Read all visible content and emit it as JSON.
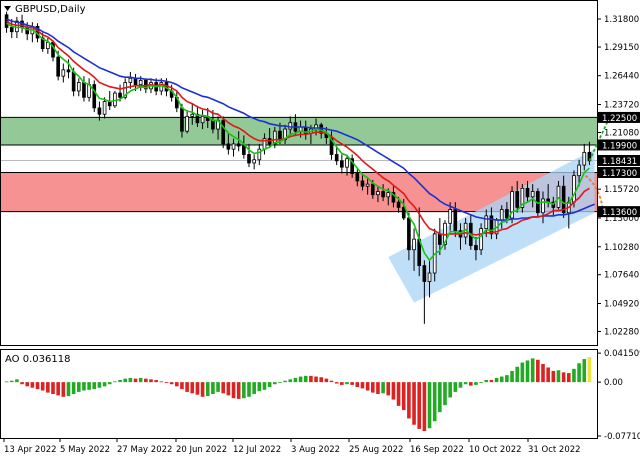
{
  "symbol_label": "GBPUSD,Daily",
  "ao_label": "AO 0.036118",
  "colors": {
    "background": "#ffffff",
    "bull_candle": "#ffffff",
    "bear_candle": "#000000",
    "ma_blue": "#1f2fd6",
    "ma_red": "#e01818",
    "ma_green": "#14c414",
    "channel_fill": "#a9d4f5",
    "resistance_zone": "#7fbf85",
    "support_zone": "#f47f7f",
    "ao_up": "#22aa22",
    "ao_down": "#dd2222",
    "ao_last": "#f2e33a",
    "price_tag": "#000000",
    "arrow_up": "#22aa22",
    "arrow_down": "#f07a22"
  },
  "chart_data": {
    "type": "candlestick",
    "price_axis": {
      "min": 1.01,
      "max": 1.335,
      "ticks": [
        "1.31800",
        "1.29150",
        "1.26440",
        "1.23720",
        "1.21080",
        "1.15720",
        "1.13000",
        "1.10280",
        "1.07640",
        "1.04920",
        "1.02280"
      ]
    },
    "highlighted_levels": [
      {
        "label": "1.22500",
        "value": 1.225
      },
      {
        "label": "1.19900",
        "value": 1.199
      },
      {
        "label": "1.18431",
        "value": 1.18431,
        "current_price": true
      },
      {
        "label": "1.17300",
        "value": 1.173
      },
      {
        "label": "1.13600",
        "value": 1.136
      }
    ],
    "zones": [
      {
        "name": "resistance",
        "from": 1.199,
        "to": 1.225
      },
      {
        "name": "support",
        "from": 1.136,
        "to": 1.173
      }
    ],
    "x_axis_labels": [
      "13 Apr 2022",
      "5 May 2022",
      "27 May 2022",
      "20 Jun 2022",
      "12 Jul 2022",
      "3 Aug 2022",
      "25 Aug 2022",
      "16 Sep 2022",
      "10 Oct 2022",
      "31 Oct 2022"
    ],
    "candles": [
      [
        1.322,
        1.325,
        1.305,
        1.31
      ],
      [
        1.31,
        1.318,
        1.3,
        1.306
      ],
      [
        1.306,
        1.32,
        1.3,
        1.316
      ],
      [
        1.316,
        1.322,
        1.305,
        1.31
      ],
      [
        1.31,
        1.315,
        1.298,
        1.304
      ],
      [
        1.304,
        1.315,
        1.296,
        1.311
      ],
      [
        1.311,
        1.314,
        1.296,
        1.3
      ],
      [
        1.3,
        1.305,
        1.287,
        1.29
      ],
      [
        1.29,
        1.3,
        1.285,
        1.296
      ],
      [
        1.296,
        1.298,
        1.278,
        1.282
      ],
      [
        1.282,
        1.288,
        1.26,
        1.264
      ],
      [
        1.264,
        1.276,
        1.258,
        1.27
      ],
      [
        1.27,
        1.28,
        1.262,
        1.268
      ],
      [
        1.268,
        1.272,
        1.245,
        1.25
      ],
      [
        1.25,
        1.262,
        1.245,
        1.258
      ],
      [
        1.258,
        1.264,
        1.24,
        1.244
      ],
      [
        1.244,
        1.262,
        1.24,
        1.256
      ],
      [
        1.256,
        1.26,
        1.23,
        1.234
      ],
      [
        1.234,
        1.24,
        1.222,
        1.228
      ],
      [
        1.228,
        1.244,
        1.224,
        1.24
      ],
      [
        1.24,
        1.25,
        1.232,
        1.236
      ],
      [
        1.236,
        1.25,
        1.234,
        1.248
      ],
      [
        1.248,
        1.256,
        1.24,
        1.244
      ],
      [
        1.244,
        1.262,
        1.242,
        1.258
      ],
      [
        1.258,
        1.268,
        1.252,
        1.262
      ],
      [
        1.262,
        1.266,
        1.25,
        1.256
      ],
      [
        1.256,
        1.264,
        1.25,
        1.26
      ],
      [
        1.26,
        1.262,
        1.248,
        1.252
      ],
      [
        1.252,
        1.262,
        1.248,
        1.258
      ],
      [
        1.258,
        1.262,
        1.246,
        1.25
      ],
      [
        1.25,
        1.262,
        1.246,
        1.258
      ],
      [
        1.258,
        1.262,
        1.245,
        1.25
      ],
      [
        1.25,
        1.256,
        1.24,
        1.244
      ],
      [
        1.244,
        1.25,
        1.23,
        1.234
      ],
      [
        1.234,
        1.238,
        1.206,
        1.212
      ],
      [
        1.212,
        1.232,
        1.21,
        1.226
      ],
      [
        1.226,
        1.238,
        1.218,
        1.228
      ],
      [
        1.228,
        1.236,
        1.216,
        1.22
      ],
      [
        1.22,
        1.232,
        1.214,
        1.226
      ],
      [
        1.226,
        1.234,
        1.215,
        1.222
      ],
      [
        1.222,
        1.232,
        1.21,
        1.214
      ],
      [
        1.214,
        1.226,
        1.204,
        1.222
      ],
      [
        1.222,
        1.226,
        1.196,
        1.2
      ],
      [
        1.2,
        1.21,
        1.19,
        1.195
      ],
      [
        1.195,
        1.205,
        1.188,
        1.2
      ],
      [
        1.2,
        1.212,
        1.193,
        1.198
      ],
      [
        1.198,
        1.208,
        1.186,
        1.19
      ],
      [
        1.19,
        1.2,
        1.178,
        1.182
      ],
      [
        1.182,
        1.19,
        1.176,
        1.185
      ],
      [
        1.185,
        1.2,
        1.18,
        1.195
      ],
      [
        1.195,
        1.21,
        1.19,
        1.205
      ],
      [
        1.205,
        1.215,
        1.196,
        1.2
      ],
      [
        1.2,
        1.216,
        1.196,
        1.212
      ],
      [
        1.212,
        1.22,
        1.2,
        1.204
      ],
      [
        1.204,
        1.218,
        1.2,
        1.214
      ],
      [
        1.214,
        1.226,
        1.208,
        1.22
      ],
      [
        1.22,
        1.228,
        1.208,
        1.212
      ],
      [
        1.212,
        1.222,
        1.206,
        1.216
      ],
      [
        1.216,
        1.222,
        1.204,
        1.21
      ],
      [
        1.21,
        1.218,
        1.2,
        1.214
      ],
      [
        1.214,
        1.224,
        1.208,
        1.218
      ],
      [
        1.218,
        1.22,
        1.205,
        1.21
      ],
      [
        1.21,
        1.216,
        1.2,
        1.206
      ],
      [
        1.206,
        1.212,
        1.185,
        1.19
      ],
      [
        1.19,
        1.198,
        1.18,
        1.184
      ],
      [
        1.184,
        1.19,
        1.172,
        1.178
      ],
      [
        1.178,
        1.19,
        1.17,
        1.186
      ],
      [
        1.186,
        1.19,
        1.168,
        1.172
      ],
      [
        1.172,
        1.176,
        1.16,
        1.165
      ],
      [
        1.165,
        1.172,
        1.156,
        1.16
      ],
      [
        1.16,
        1.168,
        1.152,
        1.162
      ],
      [
        1.162,
        1.166,
        1.148,
        1.152
      ],
      [
        1.152,
        1.16,
        1.145,
        1.155
      ],
      [
        1.155,
        1.162,
        1.146,
        1.15
      ],
      [
        1.15,
        1.158,
        1.142,
        1.154
      ],
      [
        1.154,
        1.16,
        1.14,
        1.145
      ],
      [
        1.145,
        1.15,
        1.135,
        1.14
      ],
      [
        1.14,
        1.148,
        1.128,
        1.13
      ],
      [
        1.13,
        1.135,
        1.09,
        1.1
      ],
      [
        1.1,
        1.12,
        1.08,
        1.11
      ],
      [
        1.11,
        1.14,
        1.075,
        1.085
      ],
      [
        1.085,
        1.09,
        1.03,
        1.07
      ],
      [
        1.07,
        1.09,
        1.055,
        1.078
      ],
      [
        1.078,
        1.12,
        1.07,
        1.115
      ],
      [
        1.115,
        1.13,
        1.095,
        1.105
      ],
      [
        1.105,
        1.128,
        1.1,
        1.125
      ],
      [
        1.125,
        1.145,
        1.118,
        1.138
      ],
      [
        1.138,
        1.145,
        1.112,
        1.118
      ],
      [
        1.118,
        1.125,
        1.1,
        1.112
      ],
      [
        1.112,
        1.13,
        1.105,
        1.125
      ],
      [
        1.125,
        1.133,
        1.1,
        1.104
      ],
      [
        1.104,
        1.112,
        1.09,
        1.1
      ],
      [
        1.1,
        1.125,
        1.095,
        1.12
      ],
      [
        1.12,
        1.138,
        1.112,
        1.132
      ],
      [
        1.132,
        1.14,
        1.11,
        1.115
      ],
      [
        1.115,
        1.13,
        1.11,
        1.128
      ],
      [
        1.128,
        1.142,
        1.12,
        1.138
      ],
      [
        1.138,
        1.145,
        1.125,
        1.13
      ],
      [
        1.13,
        1.16,
        1.125,
        1.155
      ],
      [
        1.155,
        1.165,
        1.135,
        1.14
      ],
      [
        1.14,
        1.162,
        1.135,
        1.158
      ],
      [
        1.158,
        1.165,
        1.145,
        1.15
      ],
      [
        1.15,
        1.162,
        1.14,
        1.155
      ],
      [
        1.155,
        1.158,
        1.13,
        1.135
      ],
      [
        1.135,
        1.155,
        1.125,
        1.148
      ],
      [
        1.148,
        1.162,
        1.14,
        1.145
      ],
      [
        1.145,
        1.15,
        1.132,
        1.14
      ],
      [
        1.14,
        1.165,
        1.138,
        1.16
      ],
      [
        1.16,
        1.17,
        1.13,
        1.135
      ],
      [
        1.135,
        1.15,
        1.12,
        1.145
      ],
      [
        1.145,
        1.175,
        1.14,
        1.17
      ],
      [
        1.17,
        1.185,
        1.16,
        1.18
      ],
      [
        1.18,
        1.2,
        1.175,
        1.192
      ],
      [
        1.192,
        1.202,
        1.18,
        1.184
      ]
    ],
    "moving_averages": [
      {
        "color_key": "ma_blue",
        "values": [
          1.318,
          1.316,
          1.315,
          1.314,
          1.312,
          1.311,
          1.309,
          1.306,
          1.304,
          1.301,
          1.297,
          1.294,
          1.291,
          1.287,
          1.284,
          1.281,
          1.278,
          1.275,
          1.272,
          1.27,
          1.268,
          1.266,
          1.264,
          1.263,
          1.263,
          1.262,
          1.262,
          1.261,
          1.261,
          1.26,
          1.26,
          1.259,
          1.258,
          1.256,
          1.253,
          1.251,
          1.249,
          1.247,
          1.245,
          1.244,
          1.242,
          1.24,
          1.238,
          1.235,
          1.233,
          1.231,
          1.229,
          1.226,
          1.224,
          1.222,
          1.221,
          1.219,
          1.218,
          1.217,
          1.217,
          1.216,
          1.216,
          1.216,
          1.216,
          1.215,
          1.215,
          1.215,
          1.214,
          1.213,
          1.212,
          1.21,
          1.208,
          1.206,
          1.204,
          1.201,
          1.198,
          1.195,
          1.192,
          1.189,
          1.186,
          1.183,
          1.18,
          1.177,
          1.172,
          1.168,
          1.163,
          1.158,
          1.153,
          1.15,
          1.146,
          1.143,
          1.141,
          1.139,
          1.137,
          1.135,
          1.133,
          1.131,
          1.13,
          1.129,
          1.129,
          1.128,
          1.128,
          1.128,
          1.129,
          1.129,
          1.13,
          1.13,
          1.131,
          1.131,
          1.132,
          1.132,
          1.132,
          1.133,
          1.133,
          1.134,
          1.135,
          1.137,
          1.139,
          1.141,
          1.143
        ]
      },
      {
        "color_key": "ma_red",
        "values": [
          1.316,
          1.313,
          1.312,
          1.312,
          1.31,
          1.31,
          1.307,
          1.303,
          1.301,
          1.297,
          1.291,
          1.287,
          1.283,
          1.278,
          1.274,
          1.27,
          1.267,
          1.263,
          1.258,
          1.256,
          1.254,
          1.253,
          1.252,
          1.253,
          1.254,
          1.255,
          1.255,
          1.255,
          1.256,
          1.255,
          1.256,
          1.255,
          1.253,
          1.25,
          1.244,
          1.24,
          1.238,
          1.235,
          1.233,
          1.232,
          1.229,
          1.228,
          1.224,
          1.22,
          1.217,
          1.215,
          1.212,
          1.208,
          1.205,
          1.203,
          1.203,
          1.203,
          1.204,
          1.204,
          1.205,
          1.207,
          1.208,
          1.209,
          1.209,
          1.21,
          1.211,
          1.211,
          1.21,
          1.207,
          1.203,
          1.2,
          1.197,
          1.193,
          1.189,
          1.184,
          1.18,
          1.176,
          1.172,
          1.168,
          1.165,
          1.161,
          1.157,
          1.153,
          1.146,
          1.141,
          1.134,
          1.126,
          1.12,
          1.118,
          1.115,
          1.114,
          1.115,
          1.115,
          1.115,
          1.116,
          1.115,
          1.114,
          1.115,
          1.116,
          1.116,
          1.117,
          1.119,
          1.12,
          1.123,
          1.125,
          1.128,
          1.129,
          1.131,
          1.131,
          1.132,
          1.134,
          1.137,
          1.137,
          1.138,
          1.14,
          1.145,
          1.149,
          1.155,
          1.158
        ]
      },
      {
        "color_key": "ma_green",
        "values": [
          1.314,
          1.311,
          1.31,
          1.31,
          1.308,
          1.308,
          1.304,
          1.299,
          1.297,
          1.292,
          1.284,
          1.28,
          1.276,
          1.268,
          1.264,
          1.258,
          1.256,
          1.25,
          1.243,
          1.242,
          1.24,
          1.241,
          1.242,
          1.246,
          1.25,
          1.252,
          1.254,
          1.253,
          1.255,
          1.254,
          1.255,
          1.253,
          1.25,
          1.244,
          1.234,
          1.231,
          1.23,
          1.227,
          1.227,
          1.226,
          1.222,
          1.222,
          1.216,
          1.21,
          1.207,
          1.204,
          1.2,
          1.194,
          1.191,
          1.192,
          1.195,
          1.197,
          1.201,
          1.202,
          1.205,
          1.209,
          1.21,
          1.212,
          1.211,
          1.212,
          1.214,
          1.213,
          1.211,
          1.204,
          1.197,
          1.191,
          1.189,
          1.183,
          1.177,
          1.171,
          1.168,
          1.163,
          1.16,
          1.157,
          1.156,
          1.152,
          1.148,
          1.143,
          1.131,
          1.124,
          1.11,
          1.097,
          1.09,
          1.096,
          1.099,
          1.107,
          1.117,
          1.117,
          1.116,
          1.119,
          1.114,
          1.11,
          1.113,
          1.119,
          1.118,
          1.121,
          1.126,
          1.127,
          1.136,
          1.137,
          1.143,
          1.145,
          1.148,
          1.144,
          1.145,
          1.145,
          1.143,
          1.149,
          1.144,
          1.144,
          1.152,
          1.162,
          1.173,
          1.177
        ]
      }
    ],
    "channel": {
      "lower_start": [
        79,
        1.05
      ],
      "lower_end": [
        114,
        1.135
      ],
      "upper_start": [
        74,
        1.093
      ],
      "upper_end": [
        114,
        1.195
      ]
    },
    "ao_axis": {
      "min": -0.08,
      "max": 0.046,
      "ticks": [
        "0.041509",
        "0.00",
        "-0.077105"
      ]
    },
    "ao_values": [
      0.001,
      0.002,
      0.004,
      -0.003,
      -0.006,
      -0.008,
      -0.01,
      -0.012,
      -0.015,
      -0.017,
      -0.019,
      -0.021,
      -0.02,
      -0.017,
      -0.014,
      -0.012,
      -0.011,
      -0.01,
      -0.008,
      -0.006,
      -0.003,
      0.001,
      0.003,
      0.005,
      0.006,
      0.005,
      0.006,
      0.005,
      0.004,
      0.003,
      0.001,
      -0.001,
      -0.003,
      -0.006,
      -0.01,
      -0.014,
      -0.016,
      -0.018,
      -0.021,
      -0.02,
      -0.017,
      -0.014,
      -0.016,
      -0.019,
      -0.023,
      -0.024,
      -0.023,
      -0.021,
      -0.017,
      -0.013,
      -0.011,
      -0.007,
      -0.003,
      0.0,
      0.002,
      0.004,
      0.006,
      0.008,
      0.009,
      0.009,
      0.008,
      0.007,
      0.005,
      0.002,
      -0.002,
      -0.004,
      -0.003,
      -0.004,
      -0.007,
      -0.009,
      -0.012,
      -0.015,
      -0.017,
      -0.016,
      -0.019,
      -0.025,
      -0.034,
      -0.04,
      -0.052,
      -0.061,
      -0.067,
      -0.07,
      -0.066,
      -0.056,
      -0.043,
      -0.033,
      -0.022,
      -0.014,
      -0.008,
      -0.003,
      -0.005,
      -0.004,
      0.0,
      0.003,
      0.003,
      0.006,
      0.008,
      0.01,
      0.016,
      0.022,
      0.028,
      0.031,
      0.034,
      0.032,
      0.026,
      0.021,
      0.016,
      0.017,
      0.014,
      0.013,
      0.019,
      0.027,
      0.033,
      0.036
    ]
  }
}
